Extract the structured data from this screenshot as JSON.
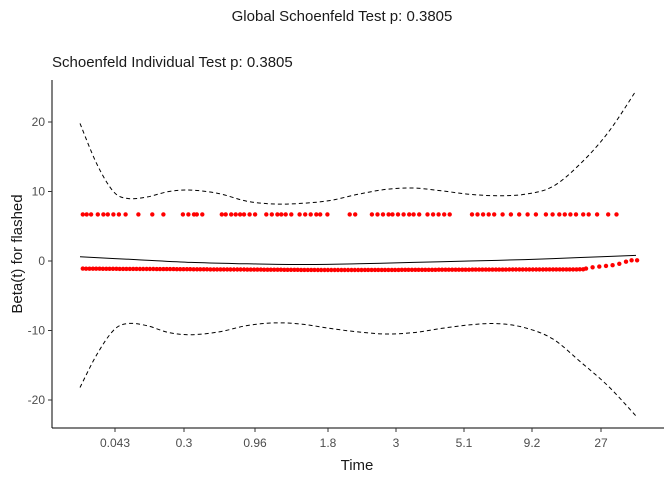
{
  "chart_data": {
    "type": "scatter",
    "title": "Global Schoenfeld Test p: 0.3805",
    "subtitle": "Schoenfeld Individual Test p: 0.3805",
    "xlabel": "Time",
    "ylabel": "Beta(t) for flashed",
    "x_ticks": [
      "0.043",
      "0.3",
      "0.96",
      "1.8",
      "3",
      "5.1",
      "9.2",
      "27"
    ],
    "y_ticks": [
      20,
      10,
      0,
      -10,
      -20
    ],
    "ylim": [
      -24.5,
      26
    ],
    "grid": false,
    "legend": "none",
    "point_color": "#ff0000",
    "line_color": "#000000",
    "upper_band": [
      [
        0,
        19.8
      ],
      [
        0.3,
        14
      ],
      [
        0.6,
        10
      ],
      [
        0.85,
        9
      ],
      [
        1.2,
        9.2
      ],
      [
        1.6,
        10
      ],
      [
        2.0,
        10.2
      ],
      [
        2.5,
        9.7
      ],
      [
        3.0,
        8.6
      ],
      [
        3.5,
        8.2
      ],
      [
        4.0,
        8.3
      ],
      [
        4.5,
        8.7
      ],
      [
        5.0,
        9.6
      ],
      [
        5.5,
        10.3
      ],
      [
        6.0,
        10.5
      ],
      [
        6.5,
        10.1
      ],
      [
        7.0,
        9.6
      ],
      [
        7.5,
        9.4
      ],
      [
        8.0,
        9.6
      ],
      [
        8.5,
        10.7
      ],
      [
        9.0,
        14
      ],
      [
        9.5,
        18.5
      ],
      [
        10.0,
        24.5
      ]
    ],
    "lower_band": [
      [
        0,
        -18.2
      ],
      [
        0.3,
        -13.5
      ],
      [
        0.6,
        -10
      ],
      [
        0.85,
        -9
      ],
      [
        1.2,
        -9.3
      ],
      [
        1.6,
        -10.3
      ],
      [
        2.0,
        -10.6
      ],
      [
        2.5,
        -10.2
      ],
      [
        3.0,
        -9.3
      ],
      [
        3.5,
        -8.9
      ],
      [
        4.0,
        -9.1
      ],
      [
        4.5,
        -9.7
      ],
      [
        5.0,
        -10.2
      ],
      [
        5.5,
        -10.5
      ],
      [
        6.0,
        -10.3
      ],
      [
        6.5,
        -9.7
      ],
      [
        7.0,
        -9.2
      ],
      [
        7.5,
        -9.0
      ],
      [
        8.0,
        -9.6
      ],
      [
        8.5,
        -11.2
      ],
      [
        9.0,
        -14.5
      ],
      [
        9.5,
        -18
      ],
      [
        10.0,
        -22.3
      ]
    ],
    "smooth_line": [
      [
        0,
        0.6
      ],
      [
        1,
        0.2
      ],
      [
        2,
        -0.2
      ],
      [
        3,
        -0.4
      ],
      [
        4,
        -0.5
      ],
      [
        5,
        -0.4
      ],
      [
        6,
        -0.2
      ],
      [
        7,
        0
      ],
      [
        8,
        0.2
      ],
      [
        9,
        0.5
      ],
      [
        10,
        0.8
      ]
    ],
    "upper_points": {
      "y": 6.7,
      "x": [
        0.05,
        0.12,
        0.2,
        0.32,
        0.42,
        0.5,
        0.6,
        0.7,
        0.82,
        1.05,
        1.3,
        1.5,
        1.85,
        1.95,
        2.05,
        2.1,
        2.2,
        2.55,
        2.62,
        2.72,
        2.8,
        2.88,
        2.95,
        3.05,
        3.15,
        3.35,
        3.45,
        3.55,
        3.62,
        3.7,
        3.8,
        3.95,
        4.05,
        4.15,
        4.25,
        4.32,
        4.45,
        4.85,
        4.95,
        5.25,
        5.35,
        5.45,
        5.55,
        5.62,
        5.72,
        5.82,
        5.92,
        6.0,
        6.1,
        6.25,
        6.35,
        6.45,
        6.55,
        6.65,
        7.05,
        7.15,
        7.25,
        7.35,
        7.45,
        7.6,
        7.75,
        7.9,
        8.05,
        8.2,
        8.38,
        8.5,
        8.62,
        8.72,
        8.82,
        8.92,
        9.05,
        9.15,
        9.3,
        9.5,
        9.65
      ]
    },
    "lower_points": {
      "x_from": 0.05,
      "x_to": 9.05,
      "count": 150,
      "y_start": -1.1,
      "y_mid": -1.3,
      "y_end": -1.2,
      "tail": [
        [
          9.1,
          -1.1
        ],
        [
          9.22,
          -0.9
        ],
        [
          9.34,
          -0.8
        ],
        [
          9.46,
          -0.7
        ],
        [
          9.58,
          -0.6
        ],
        [
          9.7,
          -0.4
        ],
        [
          9.82,
          -0.1
        ],
        [
          9.92,
          0.1
        ],
        [
          10.02,
          0.1
        ]
      ]
    }
  }
}
